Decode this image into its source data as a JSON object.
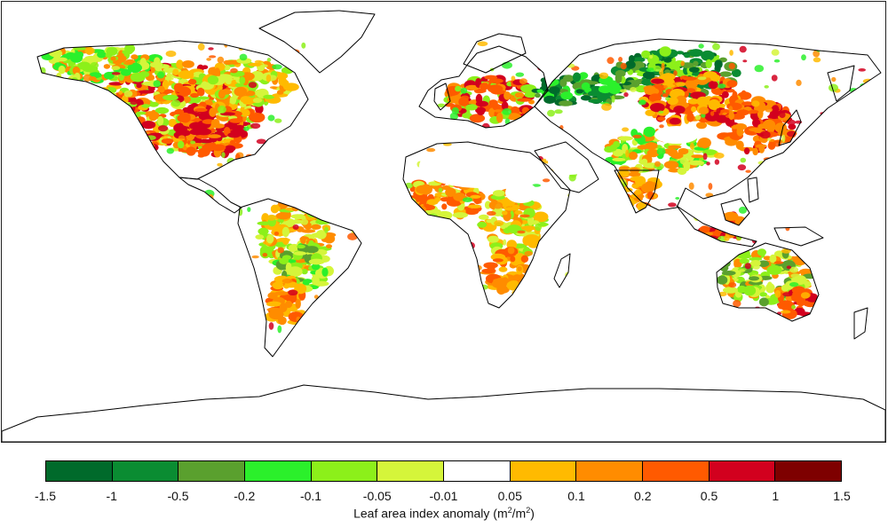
{
  "map": {
    "projection": "equirectangular world",
    "ocean_color": "#ffffff",
    "coastline_color": "#000000"
  },
  "legend": {
    "title_prefix": "Leaf area index anomaly (m",
    "title_sup1": "2",
    "title_mid": "/m",
    "title_sup2": "2",
    "title_suffix": ")",
    "ticks": [
      "-1.5",
      "-1",
      "-0.5",
      "-0.2",
      "-0.1",
      "-0.05",
      "-0.01",
      "0.05",
      "0.1",
      "0.2",
      "0.5",
      "1",
      "1.5"
    ],
    "colors": [
      "#006a2b",
      "#0a8c32",
      "#5aa02e",
      "#2bf02b",
      "#8cf01a",
      "#d5f53a",
      "#ffffff",
      "#ffba00",
      "#ff8c00",
      "#ff5a00",
      "#d2001e",
      "#7e0000"
    ]
  }
}
